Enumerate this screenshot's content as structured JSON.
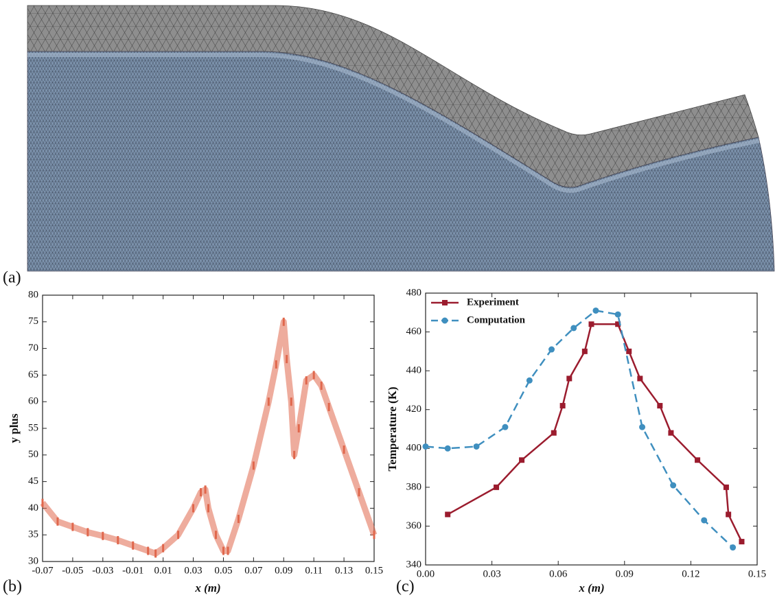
{
  "panel_a": {
    "label": "(a)"
  },
  "chart_data": [
    {
      "type": "scatter",
      "panel_label": "(b)",
      "x_label": "x (m)",
      "y_label": "y plus",
      "color": "#e0674c",
      "x": [
        -0.07,
        -0.06,
        -0.05,
        -0.04,
        -0.03,
        -0.02,
        -0.01,
        0.0,
        0.005,
        0.01,
        0.02,
        0.03,
        0.035,
        0.038,
        0.04,
        0.045,
        0.05,
        0.053,
        0.06,
        0.07,
        0.08,
        0.085,
        0.09,
        0.092,
        0.095,
        0.097,
        0.1,
        0.105,
        0.11,
        0.115,
        0.12,
        0.13,
        0.14,
        0.15
      ],
      "values": [
        41,
        37.5,
        36.5,
        35.5,
        34.8,
        34,
        33,
        32,
        31.5,
        32.5,
        35,
        40,
        43,
        43.5,
        40,
        35,
        32,
        32,
        38,
        48,
        60,
        67,
        75,
        68,
        60,
        50,
        55,
        64,
        65,
        63,
        59,
        51,
        43,
        35
      ],
      "xlim": [
        -0.07,
        0.15
      ],
      "xticks": [
        -0.07,
        -0.05,
        -0.03,
        -0.01,
        0.01,
        0.03,
        0.05,
        0.07,
        0.09,
        0.11,
        0.13,
        0.15
      ],
      "ylim": [
        30,
        80
      ],
      "yticks": [
        30,
        35,
        40,
        45,
        50,
        55,
        60,
        65,
        70,
        75,
        80
      ]
    },
    {
      "type": "line",
      "panel_label": "(c)",
      "x_label": "x (m)",
      "y_label": "Temperature (K)",
      "legend": "upper left",
      "series": [
        {
          "name": "Experiment",
          "color": "#9b1c2e",
          "marker": "square",
          "dash": false,
          "x": [
            0.01,
            0.032,
            0.0435,
            0.058,
            0.062,
            0.065,
            0.072,
            0.075,
            0.087,
            0.092,
            0.097,
            0.106,
            0.111,
            0.123,
            0.136,
            0.137,
            0.143
          ],
          "values": [
            366,
            380,
            394,
            408,
            422,
            436,
            450,
            464,
            464,
            450,
            436,
            422,
            408,
            394,
            380,
            366,
            352
          ]
        },
        {
          "name": "Computation",
          "color": "#3f8fbf",
          "marker": "circle",
          "dash": true,
          "x": [
            0.0,
            0.01,
            0.023,
            0.036,
            0.047,
            0.057,
            0.067,
            0.077,
            0.087,
            0.098,
            0.112,
            0.126,
            0.139
          ],
          "values": [
            401,
            400,
            401,
            411,
            435,
            451,
            462,
            471,
            469,
            411,
            381,
            363,
            349
          ]
        }
      ],
      "xlim": [
        0,
        0.15
      ],
      "xticks": [
        {
          "value": 0,
          "label": "0.00"
        },
        0.03,
        0.06,
        0.09,
        0.12,
        0.15
      ],
      "ylim": [
        340,
        480
      ],
      "yticks": [
        340,
        360,
        380,
        400,
        420,
        440,
        460,
        480
      ]
    }
  ]
}
